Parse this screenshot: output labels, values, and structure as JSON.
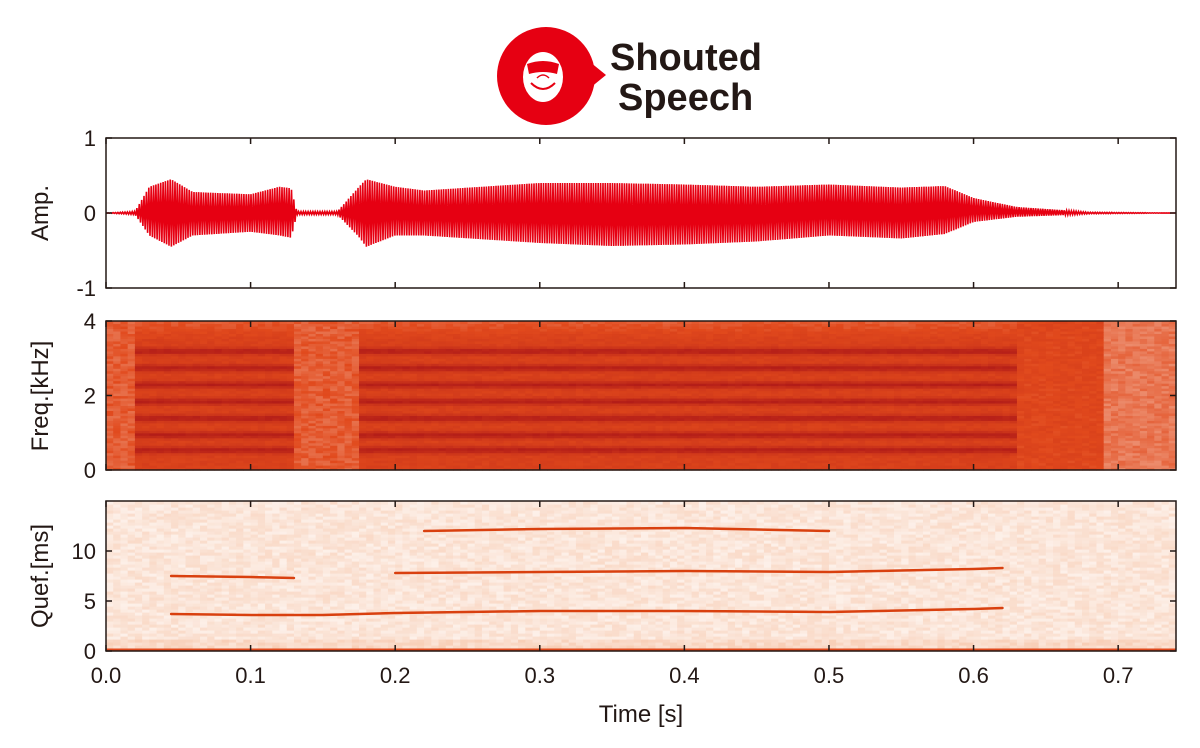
{
  "header": {
    "title_line1": "Shouted",
    "title_line2": "Speech",
    "icon": "shouting-mouth-icon",
    "accent_color": "#e60012"
  },
  "chart_data": [
    {
      "type": "line",
      "name": "waveform",
      "ylabel": "Amp.",
      "ylim": [
        -1,
        1
      ],
      "yticks": [
        1,
        0,
        -1
      ],
      "xlim": [
        0.0,
        0.74
      ],
      "color": "#e60012",
      "envelope": {
        "t": [
          0.0,
          0.02,
          0.03,
          0.045,
          0.06,
          0.1,
          0.12,
          0.128,
          0.132,
          0.16,
          0.175,
          0.18,
          0.2,
          0.22,
          0.3,
          0.35,
          0.4,
          0.45,
          0.5,
          0.55,
          0.58,
          0.6,
          0.63,
          0.66,
          0.68,
          0.74
        ],
        "upper": [
          0.0,
          0.02,
          0.35,
          0.45,
          0.28,
          0.25,
          0.35,
          0.33,
          0.02,
          0.02,
          0.35,
          0.45,
          0.35,
          0.3,
          0.4,
          0.4,
          0.38,
          0.35,
          0.38,
          0.34,
          0.36,
          0.2,
          0.08,
          0.04,
          0.01,
          0.0
        ],
        "lower": [
          0.0,
          -0.02,
          -0.3,
          -0.45,
          -0.3,
          -0.25,
          -0.3,
          -0.33,
          -0.02,
          -0.02,
          -0.32,
          -0.45,
          -0.3,
          -0.3,
          -0.4,
          -0.44,
          -0.42,
          -0.38,
          -0.3,
          -0.34,
          -0.28,
          -0.12,
          -0.05,
          -0.03,
          -0.01,
          0.0
        ]
      }
    },
    {
      "type": "heatmap",
      "name": "spectrogram",
      "ylabel": "Freq.[kHz]",
      "ylim": [
        0,
        4
      ],
      "yticks": [
        4,
        2,
        0
      ],
      "xlim": [
        0.0,
        0.74
      ],
      "harmonics_khz": [
        0.55,
        0.95,
        1.4,
        1.85,
        2.3,
        2.75,
        3.2
      ],
      "voiced_segments": [
        [
          0.02,
          0.13
        ],
        [
          0.175,
          0.63
        ]
      ],
      "colormap": [
        "#fcefe4",
        "#e1491c",
        "#b01a18"
      ]
    },
    {
      "type": "heatmap",
      "name": "cepstrogram",
      "ylabel": "Quef.[ms]",
      "ylim": [
        0,
        15
      ],
      "yticks": [
        10,
        5,
        0
      ],
      "xlim": [
        0.0,
        0.74
      ],
      "xlabel": "Time [s]",
      "xticks": [
        "0.0",
        "0.1",
        "0.2",
        "0.3",
        "0.4",
        "0.5",
        "0.6",
        "0.7"
      ],
      "quefrency_lines": [
        {
          "t": [
            0.045,
            0.1,
            0.15,
            0.2,
            0.3,
            0.4,
            0.5,
            0.6,
            0.62
          ],
          "ms": [
            3.7,
            3.6,
            3.6,
            3.8,
            4.0,
            4.0,
            3.9,
            4.2,
            4.3
          ]
        },
        {
          "t": [
            0.045,
            0.1,
            0.13
          ],
          "ms": [
            7.5,
            7.4,
            7.3
          ]
        },
        {
          "t": [
            0.2,
            0.3,
            0.4,
            0.5,
            0.6,
            0.62
          ],
          "ms": [
            7.8,
            7.9,
            8.0,
            7.9,
            8.2,
            8.3
          ]
        },
        {
          "t": [
            0.22,
            0.3,
            0.4,
            0.5
          ],
          "ms": [
            12.0,
            12.2,
            12.3,
            12.0
          ]
        }
      ],
      "colormap": [
        "#ffffff",
        "#f6c2a4",
        "#e1491c"
      ]
    }
  ]
}
